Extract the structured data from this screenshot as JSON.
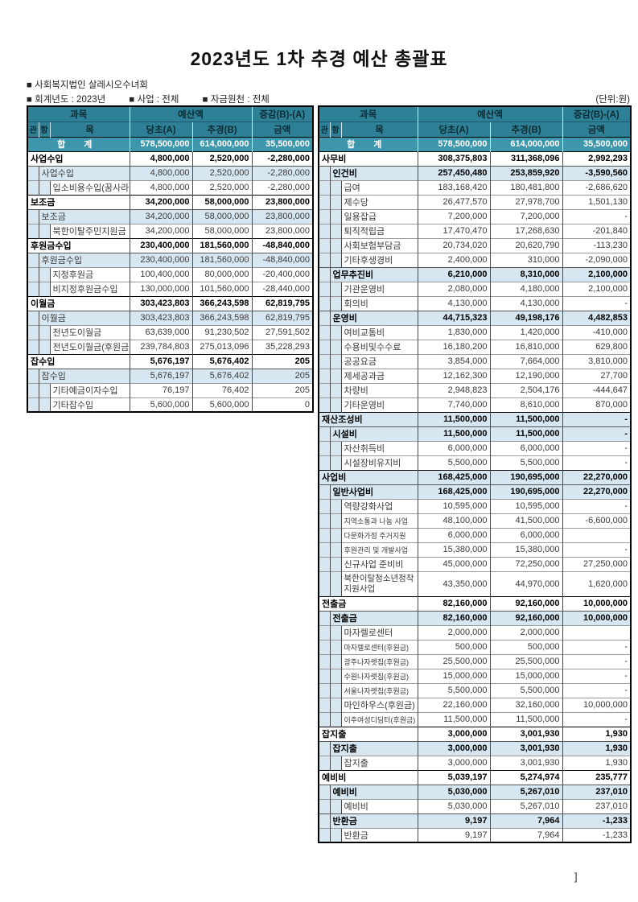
{
  "page": {
    "title": "2023년도 1차 추경 예산 총괄표",
    "org_line": "■ 사회복지법인 살레시오수녀회",
    "fiscal_year": "■ 회계년도 : 2023년",
    "business": "■ 사업 : 전체",
    "fund_source": "■ 자금원천 : 전체",
    "unit_note": "(단위:원)",
    "stray_bracket": "]"
  },
  "header": {
    "gwamok": "과목",
    "yesanaek": "예산액",
    "jeunggam": "증감(B)-(A)",
    "gwan": "관",
    "hang": "항",
    "mok": "목",
    "dangcho": "당초(A)",
    "chugyeong": "추경(B)",
    "geumaek": "금액"
  },
  "colors": {
    "header_teal": "#2e8096",
    "total_teal": "#3e96ab",
    "row_pale_blue": "#d6e7f1"
  },
  "left_table": {
    "rows": [
      {
        "level": "total",
        "name": "합  계",
        "a": "578,500,000",
        "b": "614,000,000",
        "d": "35,500,000"
      },
      {
        "level": "gwan",
        "name": "사업수입",
        "a": "4,800,000",
        "b": "2,520,000",
        "d": "-2,280,000"
      },
      {
        "level": "hang",
        "name": "사업수입",
        "a": "4,800,000",
        "b": "2,520,000",
        "d": "-2,280,000"
      },
      {
        "level": "mok",
        "name": "입소비용수입(꿈사라",
        "a": "4,800,000",
        "b": "2,520,000",
        "d": "-2,280,000"
      },
      {
        "level": "gwan",
        "name": "보조금",
        "a": "34,200,000",
        "b": "58,000,000",
        "d": "23,800,000"
      },
      {
        "level": "hang",
        "name": "보조금",
        "a": "34,200,000",
        "b": "58,000,000",
        "d": "23,800,000"
      },
      {
        "level": "mok",
        "name": "북한이탈주민지원금",
        "a": "34,200,000",
        "b": "58,000,000",
        "d": "23,800,000"
      },
      {
        "level": "gwan",
        "name": "후원금수입",
        "a": "230,400,000",
        "b": "181,560,000",
        "d": "-48,840,000"
      },
      {
        "level": "hang",
        "name": "후원금수입",
        "a": "230,400,000",
        "b": "181,560,000",
        "d": "-48,840,000"
      },
      {
        "level": "mok",
        "name": "지정후원금",
        "a": "100,400,000",
        "b": "80,000,000",
        "d": "-20,400,000"
      },
      {
        "level": "mok",
        "name": "비지정후원금수입",
        "a": "130,000,000",
        "b": "101,560,000",
        "d": "-28,440,000"
      },
      {
        "level": "gwan",
        "name": "이월금",
        "a": "303,423,803",
        "b": "366,243,598",
        "d": "62,819,795"
      },
      {
        "level": "hang",
        "name": "이월금",
        "a": "303,423,803",
        "b": "366,243,598",
        "d": "62,819,795"
      },
      {
        "level": "mok",
        "name": "전년도이월금",
        "a": "63,639,000",
        "b": "91,230,502",
        "d": "27,591,502"
      },
      {
        "level": "mok",
        "name": "전년도이월금(후원금",
        "a": "239,784,803",
        "b": "275,013,096",
        "d": "35,228,293"
      },
      {
        "level": "gwan",
        "name": "잡수입",
        "a": "5,676,197",
        "b": "5,676,402",
        "d": "205"
      },
      {
        "level": "hang",
        "name": "잡수입",
        "a": "5,676,197",
        "b": "5,676,402",
        "d": "205"
      },
      {
        "level": "mok",
        "name": "기타예금이자수입",
        "a": "76,197",
        "b": "76,402",
        "d": "205"
      },
      {
        "level": "mok",
        "name": "기타잡수입",
        "a": "5,600,000",
        "b": "5,600,000",
        "d": "0"
      }
    ]
  },
  "right_table": {
    "rows": [
      {
        "level": "total",
        "name": "합  계",
        "a": "578,500,000",
        "b": "614,000,000",
        "d": "35,500,000"
      },
      {
        "level": "gwan",
        "name": "사무비",
        "a": "308,375,803",
        "b": "311,368,096",
        "d": "2,992,293"
      },
      {
        "level": "hang",
        "bold": true,
        "name": "인건비",
        "a": "257,450,480",
        "b": "253,859,920",
        "d": "-3,590,560"
      },
      {
        "level": "mok",
        "name": "급여",
        "a": "183,168,420",
        "b": "180,481,800",
        "d": "-2,686,620"
      },
      {
        "level": "mok",
        "name": "제수당",
        "a": "26,477,570",
        "b": "27,978,700",
        "d": "1,501,130"
      },
      {
        "level": "mok",
        "name": "일용잡급",
        "a": "7,200,000",
        "b": "7,200,000",
        "d": "-"
      },
      {
        "level": "mok",
        "name": "퇴직적립금",
        "a": "17,470,470",
        "b": "17,268,630",
        "d": "-201,840"
      },
      {
        "level": "mok",
        "name": "사회보험부담금",
        "a": "20,734,020",
        "b": "20,620,790",
        "d": "-113,230"
      },
      {
        "level": "mok",
        "name": "기타후생경비",
        "a": "2,400,000",
        "b": "310,000",
        "d": "-2,090,000"
      },
      {
        "level": "hang",
        "bold": true,
        "name": "업무추진비",
        "a": "6,210,000",
        "b": "8,310,000",
        "d": "2,100,000"
      },
      {
        "level": "mok",
        "name": "기관운영비",
        "a": "2,080,000",
        "b": "4,180,000",
        "d": "2,100,000"
      },
      {
        "level": "mok",
        "name": "회의비",
        "a": "4,130,000",
        "b": "4,130,000",
        "d": "-"
      },
      {
        "level": "hang",
        "bold": true,
        "name": "운영비",
        "a": "44,715,323",
        "b": "49,198,176",
        "d": "4,482,853"
      },
      {
        "level": "mok",
        "name": "여비교통비",
        "a": "1,830,000",
        "b": "1,420,000",
        "d": "-410,000"
      },
      {
        "level": "mok",
        "name": "수용비및수수료",
        "a": "16,180,200",
        "b": "16,810,000",
        "d": "629,800"
      },
      {
        "level": "mok",
        "name": "공공요금",
        "a": "3,854,000",
        "b": "7,664,000",
        "d": "3,810,000"
      },
      {
        "level": "mok",
        "name": "제세공과금",
        "a": "12,162,300",
        "b": "12,190,000",
        "d": "27,700"
      },
      {
        "level": "mok",
        "name": "차량비",
        "a": "2,948,823",
        "b": "2,504,176",
        "d": "-444,647"
      },
      {
        "level": "mok",
        "name": "기타운영비",
        "a": "7,740,000",
        "b": "8,610,000",
        "d": "870,000"
      },
      {
        "level": "gwan",
        "shade": true,
        "name": "재산조성비",
        "a": "11,500,000",
        "b": "11,500,000",
        "d": "-"
      },
      {
        "level": "hang",
        "bold": true,
        "name": "시설비",
        "a": "11,500,000",
        "b": "11,500,000",
        "d": "-"
      },
      {
        "level": "mok",
        "name": "자산취득비",
        "a": "6,000,000",
        "b": "6,000,000",
        "d": "-"
      },
      {
        "level": "mok",
        "name": "시설장비유지비",
        "a": "5,500,000",
        "b": "5,500,000",
        "d": "-"
      },
      {
        "level": "gwan",
        "shade": true,
        "name": "사업비",
        "a": "168,425,000",
        "b": "190,695,000",
        "d": "22,270,000"
      },
      {
        "level": "hang",
        "bold": true,
        "name": "일반사업비",
        "a": "168,425,000",
        "b": "190,695,000",
        "d": "22,270,000"
      },
      {
        "level": "mok",
        "name": "역량강화사업",
        "a": "10,595,000",
        "b": "10,595,000",
        "d": "-"
      },
      {
        "level": "mok",
        "small": true,
        "name": "지역소통과 나눔 사업",
        "a": "48,100,000",
        "b": "41,500,000",
        "d": "-6,600,000"
      },
      {
        "level": "mok",
        "small": true,
        "name": "다문화가정 주거지원",
        "a": "6,000,000",
        "b": "6,000,000",
        "d": ""
      },
      {
        "level": "mok",
        "small": true,
        "name": "후원관리 및 개발사업",
        "a": "15,380,000",
        "b": "15,380,000",
        "d": "-"
      },
      {
        "level": "mok",
        "name": "신규사업 준비비",
        "a": "45,000,000",
        "b": "72,250,000",
        "d": "27,250,000"
      },
      {
        "level": "mok",
        "wrap": true,
        "name": "북한이탈청소년정착지원사업",
        "a": "43,350,000",
        "b": "44,970,000",
        "d": "1,620,000"
      },
      {
        "level": "gwan",
        "name": "전출금",
        "a": "82,160,000",
        "b": "92,160,000",
        "d": "10,000,000"
      },
      {
        "level": "hang",
        "bold": true,
        "name": "전출금",
        "a": "82,160,000",
        "b": "92,160,000",
        "d": "10,000,000"
      },
      {
        "level": "mok",
        "name": "마자렐로센터",
        "a": "2,000,000",
        "b": "2,000,000",
        "d": ""
      },
      {
        "level": "mok",
        "small": true,
        "name": "마자렐로센터(후원금)",
        "a": "500,000",
        "b": "500,000",
        "d": "-"
      },
      {
        "level": "mok",
        "small": true,
        "name": "광주나자렛집(후원금)",
        "a": "25,500,000",
        "b": "25,500,000",
        "d": "-"
      },
      {
        "level": "mok",
        "small": true,
        "name": "수원나자렛집(후원금)",
        "a": "15,000,000",
        "b": "15,000,000",
        "d": "-"
      },
      {
        "level": "mok",
        "small": true,
        "name": "서울나자렛집(후원금)",
        "a": "5,500,000",
        "b": "5,500,000",
        "d": "-"
      },
      {
        "level": "mok",
        "name": "마인하우스(후원금)",
        "a": "22,160,000",
        "b": "32,160,000",
        "d": "10,000,000"
      },
      {
        "level": "mok",
        "small": true,
        "name": "이주여성디딤터(후원금)",
        "a": "11,500,000",
        "b": "11,500,000",
        "d": "-"
      },
      {
        "level": "gwan",
        "name": "잡지출",
        "a": "3,000,000",
        "b": "3,001,930",
        "d": "1,930"
      },
      {
        "level": "hang",
        "bold": true,
        "name": "잡지출",
        "a": "3,000,000",
        "b": "3,001,930",
        "d": "1,930"
      },
      {
        "level": "mok",
        "name": "잡지출",
        "a": "3,000,000",
        "b": "3,001,930",
        "d": "1,930"
      },
      {
        "level": "gwan",
        "name": "예비비",
        "a": "5,039,197",
        "b": "5,274,974",
        "d": "235,777"
      },
      {
        "level": "hang",
        "bold": true,
        "name": "예비비",
        "a": "5,030,000",
        "b": "5,267,010",
        "d": "237,010"
      },
      {
        "level": "mok",
        "name": "예비비",
        "a": "5,030,000",
        "b": "5,267,010",
        "d": "237,010"
      },
      {
        "level": "hang",
        "bold": true,
        "name": "반환금",
        "a": "9,197",
        "b": "7,964",
        "d": "-1,233"
      },
      {
        "level": "mok",
        "name": "반환금",
        "a": "9,197",
        "b": "7,964",
        "d": "-1,233"
      }
    ]
  }
}
